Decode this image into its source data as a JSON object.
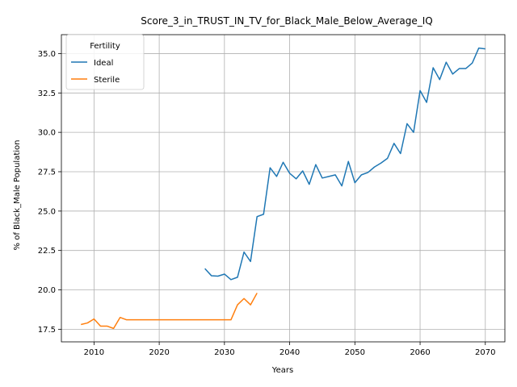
{
  "chart_data": {
    "type": "line",
    "title": "Score_3_in_TRUST_IN_TV_for_Black_Male_Below_Average_IQ",
    "xlabel": "Years",
    "ylabel": "% of Black_Male Population",
    "xlim": [
      2005,
      2073
    ],
    "ylim": [
      16.7,
      36.2
    ],
    "xticks": [
      2010,
      2020,
      2030,
      2040,
      2050,
      2060,
      2070
    ],
    "yticks": [
      17.5,
      20.0,
      22.5,
      25.0,
      27.5,
      30.0,
      32.5,
      35.0
    ],
    "xtick_labels": [
      "2010",
      "2020",
      "2030",
      "2040",
      "2050",
      "2060",
      "2070"
    ],
    "ytick_labels": [
      "17.5",
      "20.0",
      "22.5",
      "25.0",
      "27.5",
      "30.0",
      "32.5",
      "35.0"
    ],
    "grid": true,
    "legend": {
      "title": "Fertility",
      "placement": "top-left"
    },
    "series": [
      {
        "name": "Ideal",
        "color": "#1f77b4",
        "x": [
          2027,
          2028,
          2029,
          2030,
          2031,
          2032,
          2033,
          2034,
          2035,
          2036,
          2037,
          2038,
          2039,
          2040,
          2041,
          2042,
          2043,
          2044,
          2045,
          2046,
          2047,
          2048,
          2049,
          2050,
          2051,
          2052,
          2053,
          2054,
          2055,
          2056,
          2057,
          2058,
          2059,
          2060,
          2061,
          2062,
          2063,
          2064,
          2065,
          2066,
          2067,
          2068,
          2069,
          2070
        ],
        "y": [
          21.35,
          20.9,
          20.87,
          21.0,
          20.65,
          20.8,
          22.4,
          21.8,
          24.65,
          24.8,
          27.75,
          27.2,
          28.1,
          27.4,
          27.05,
          27.55,
          26.7,
          27.95,
          27.1,
          27.2,
          27.3,
          26.6,
          28.15,
          26.8,
          27.3,
          27.45,
          27.8,
          28.05,
          28.35,
          29.3,
          28.65,
          30.55,
          30.0,
          32.65,
          31.9,
          34.1,
          33.35,
          34.45,
          33.7,
          34.05,
          34.05,
          34.4,
          35.35,
          35.3
        ]
      },
      {
        "name": "Sterile",
        "color": "#ff7f0e",
        "x": [
          2008,
          2009,
          2010,
          2011,
          2012,
          2013,
          2014,
          2015,
          2016,
          2017,
          2018,
          2019,
          2020,
          2021,
          2022,
          2023,
          2024,
          2025,
          2026,
          2027,
          2028,
          2029,
          2030,
          2031,
          2032,
          2033,
          2034,
          2035
        ],
        "y": [
          17.8,
          17.9,
          18.15,
          17.7,
          17.7,
          17.55,
          18.25,
          18.1,
          18.1,
          18.1,
          18.1,
          18.1,
          18.1,
          18.1,
          18.1,
          18.1,
          18.1,
          18.1,
          18.1,
          18.1,
          18.1,
          18.1,
          18.1,
          18.1,
          19.05,
          19.45,
          19.05,
          19.8
        ]
      }
    ]
  }
}
